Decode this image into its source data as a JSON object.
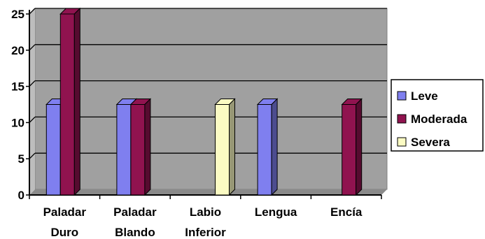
{
  "chart_data": {
    "type": "bar",
    "categories": [
      [
        "Paladar",
        "Duro"
      ],
      [
        "Paladar",
        "Blando"
      ],
      [
        "Labio",
        "Inferior"
      ],
      [
        "Lengua"
      ],
      [
        "Encía"
      ]
    ],
    "series": [
      {
        "name": "Leve",
        "values": [
          12.5,
          12.5,
          0,
          12.5,
          0
        ],
        "color": "#7f7fef"
      },
      {
        "name": "Moderada",
        "values": [
          25,
          12.5,
          0,
          0,
          12.5
        ],
        "color": "#90134f"
      },
      {
        "name": "Severa",
        "values": [
          0,
          0,
          12.5,
          0,
          0
        ],
        "color": "#fbfbc3"
      }
    ],
    "ylim": [
      0,
      25
    ],
    "yticks": [
      0,
      5,
      10,
      15,
      20,
      25
    ],
    "grid": true,
    "legend_position": "right",
    "plot_background": "#a0a0a0"
  }
}
